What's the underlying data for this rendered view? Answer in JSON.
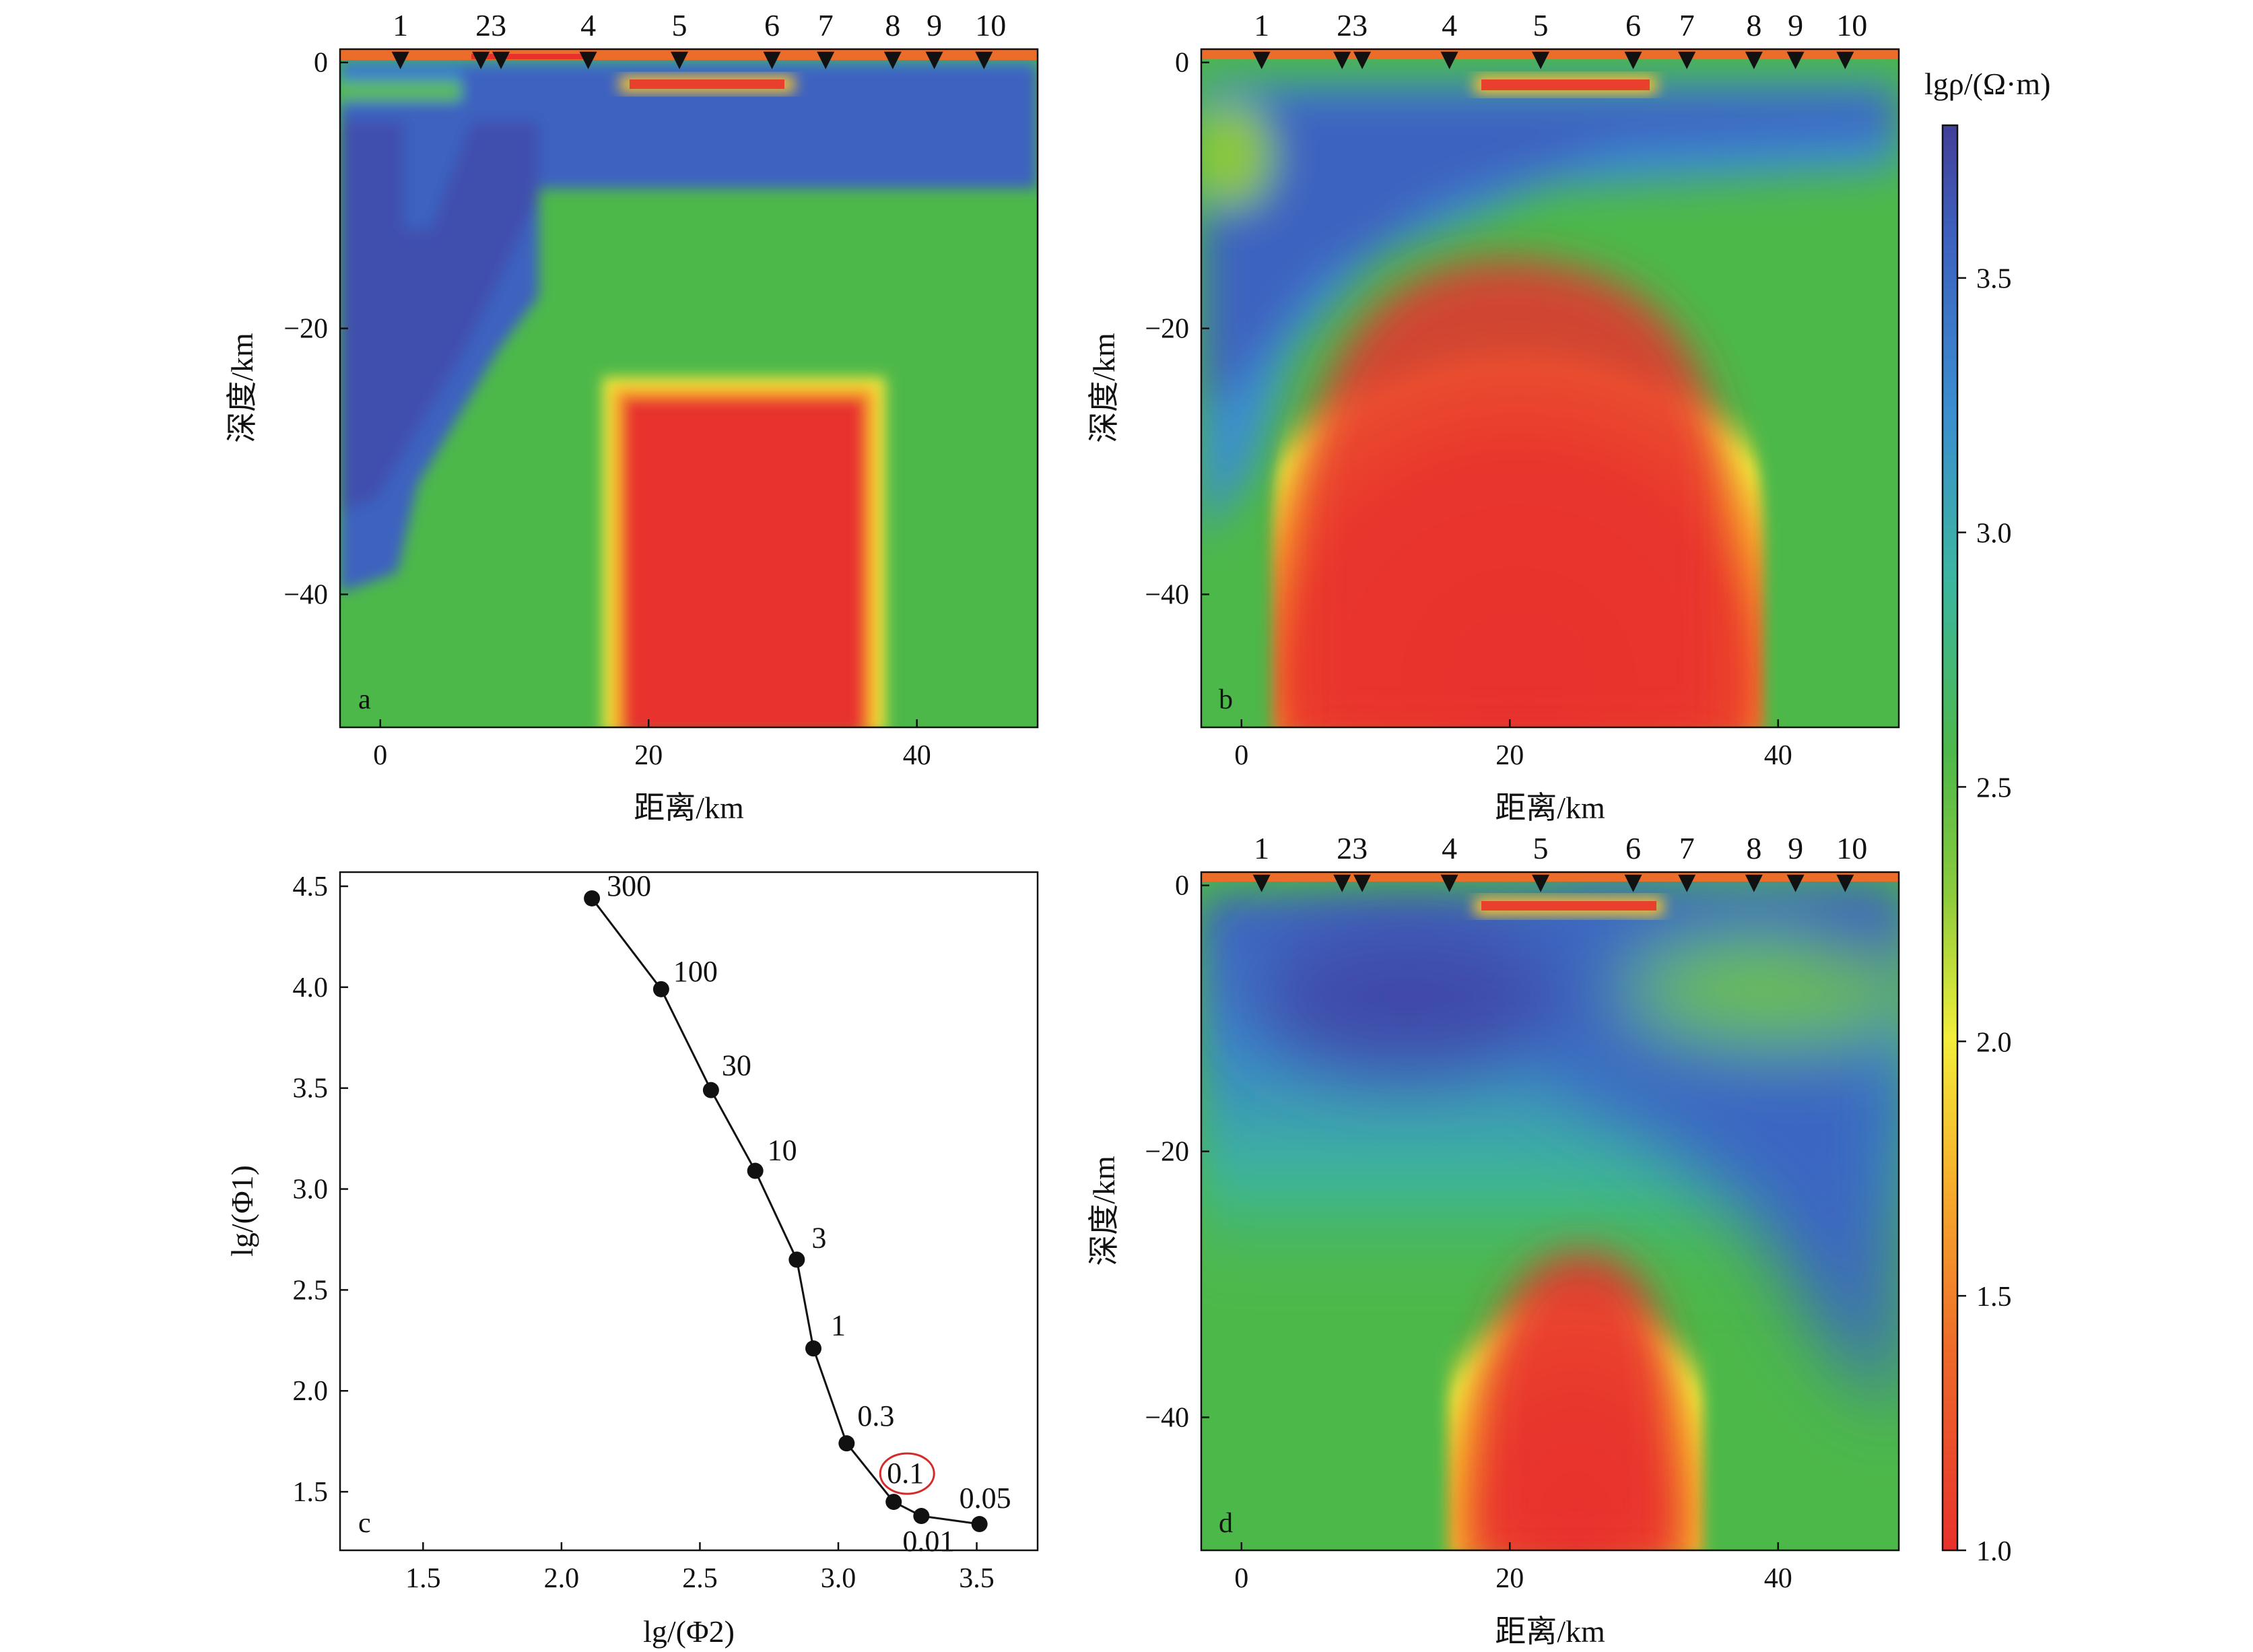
{
  "colorbar": {
    "title": "lgρ/(Ω·m)",
    "ticks": [
      "1.0",
      "1.5",
      "2.0",
      "2.5",
      "3.0",
      "3.5"
    ],
    "range": [
      1.0,
      3.8
    ]
  },
  "stations": [
    "1",
    "23",
    "4",
    "5",
    "6",
    "7",
    "8",
    "9",
    "10"
  ],
  "sections": {
    "a": {
      "letter": "a",
      "ylabel": "深度/km",
      "xlabel": "距离/km"
    },
    "b": {
      "letter": "b",
      "ylabel": "深度/km",
      "xlabel": "距离/km"
    },
    "d": {
      "letter": "d",
      "ylabel": "深度/km",
      "xlabel": "距离/km"
    }
  },
  "section_axes": {
    "x_ticks": [
      "0",
      "20",
      "40"
    ],
    "y_ticks": [
      "0",
      "−20",
      "−40"
    ]
  },
  "chart_data": [
    {
      "type": "heatmap",
      "panel": "a",
      "xlabel": "距离/km",
      "ylabel": "深度/km",
      "xlim": [
        -3,
        49
      ],
      "ylim": [
        -50,
        1
      ],
      "colorbar_title": "lgρ/(Ω·m)",
      "station_km": [
        1.5,
        7.5,
        9,
        15.5,
        22.3,
        29.2,
        33.2,
        38.2,
        41.3,
        45
      ]
    },
    {
      "type": "heatmap",
      "panel": "b",
      "xlabel": "距离/km",
      "ylabel": "深度/km",
      "xlim": [
        -3,
        49
      ],
      "ylim": [
        -50,
        1
      ],
      "colorbar_title": "lgρ/(Ω·m)"
    },
    {
      "type": "scatter",
      "panel": "c",
      "letter": "c",
      "xlabel": "lg/(Φ2)",
      "ylabel": "lg/(Φ1)",
      "xlim": [
        1.2,
        3.72
      ],
      "ylim": [
        1.21,
        4.57
      ],
      "x_ticks": [
        "1.5",
        "2.0",
        "2.5",
        "3.0",
        "3.5"
      ],
      "y_ticks": [
        "1.5",
        "2.0",
        "2.5",
        "3.0",
        "3.5",
        "4.0",
        "4.5"
      ],
      "points": [
        {
          "label": "300",
          "x": 2.11,
          "y": 4.44
        },
        {
          "label": "100",
          "x": 2.36,
          "y": 3.99
        },
        {
          "label": "30",
          "x": 2.54,
          "y": 3.49
        },
        {
          "label": "10",
          "x": 2.7,
          "y": 3.09
        },
        {
          "label": "3",
          "x": 2.85,
          "y": 2.65
        },
        {
          "label": "1",
          "x": 2.91,
          "y": 2.21
        },
        {
          "label": "0.3",
          "x": 3.03,
          "y": 1.74
        },
        {
          "label": "0.1",
          "x": 3.2,
          "y": 1.45,
          "highlight": true
        },
        {
          "label": "0.01",
          "x": 3.3,
          "y": 1.38
        },
        {
          "label": "0.05",
          "x": 3.51,
          "y": 1.34
        }
      ]
    },
    {
      "type": "heatmap",
      "panel": "d",
      "xlabel": "距离/km",
      "ylabel": "深度/km",
      "xlim": [
        -3,
        49
      ],
      "ylim": [
        -50,
        1
      ],
      "colorbar_title": "lgρ/(Ω·m)"
    }
  ]
}
